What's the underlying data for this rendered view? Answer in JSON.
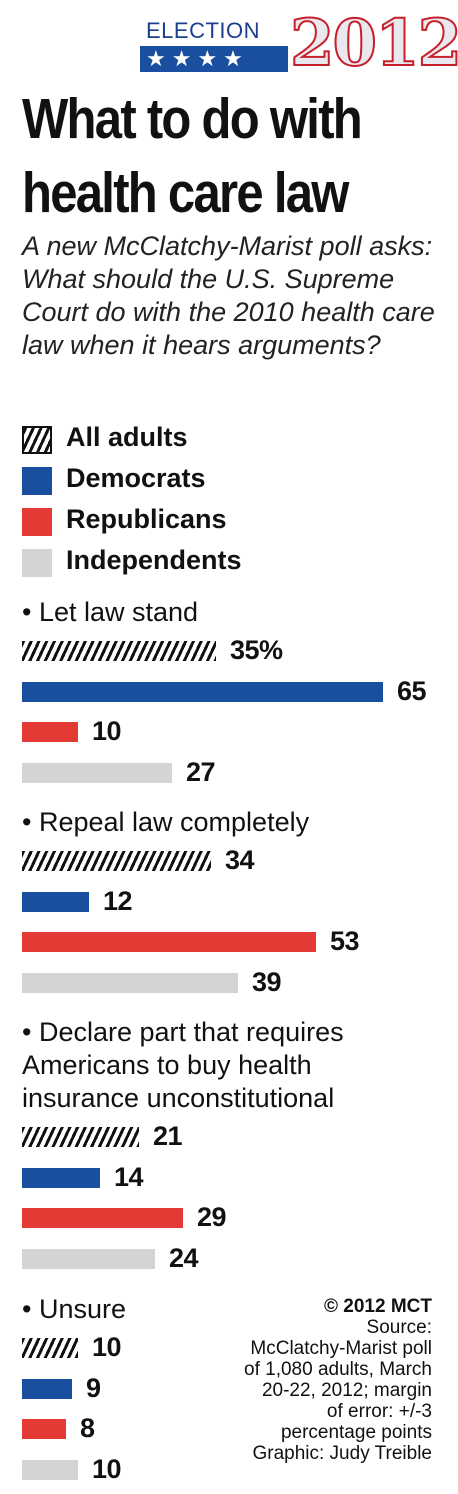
{
  "logo": {
    "word": "ELECTION",
    "stars": "★★★★",
    "year": "2012"
  },
  "title_line1": "What to do with",
  "title_line2": "health care law",
  "subtitle": "A new McClatchy-Marist poll asks: What should the U.S. Supreme Court do with the 2010 health care law when it hears arguments?",
  "legend": [
    {
      "label": "All adults",
      "pattern": "hatched"
    },
    {
      "label": "Democrats",
      "color": "#1a4fa0"
    },
    {
      "label": "Republicans",
      "color": "#e43a35"
    },
    {
      "label": "Independents",
      "color": "#d4d4d4"
    }
  ],
  "credit": {
    "copyright": "© 2012 MCT",
    "lines": [
      "Source:",
      "McClatchy-Marist poll",
      "of 1,080 adults, March",
      "20-22, 2012; margin",
      "of error: +/-3",
      "percentage points",
      "Graphic: Judy Treible"
    ]
  },
  "chart_data": {
    "type": "bar",
    "orientation": "horizontal",
    "unit": "%",
    "series_names": [
      "All adults",
      "Democrats",
      "Republicans",
      "Independents"
    ],
    "groups": [
      {
        "label": "• Let law stand",
        "values": [
          35,
          65,
          10,
          27
        ],
        "value_labels": [
          "35%",
          "65",
          "10",
          "27"
        ]
      },
      {
        "label": "• Repeal law completely",
        "values": [
          34,
          12,
          53,
          39
        ],
        "value_labels": [
          "34",
          "12",
          "53",
          "39"
        ]
      },
      {
        "label_lines": [
          "• Declare part that requires",
          "Americans to buy health",
          "insurance unconstitutional"
        ],
        "values": [
          21,
          14,
          29,
          24
        ],
        "value_labels": [
          "21",
          "14",
          "29",
          "24"
        ]
      },
      {
        "label": "• Unsure",
        "values": [
          10,
          9,
          8,
          10
        ],
        "value_labels": [
          "10",
          "9",
          "8",
          "10"
        ]
      }
    ]
  }
}
